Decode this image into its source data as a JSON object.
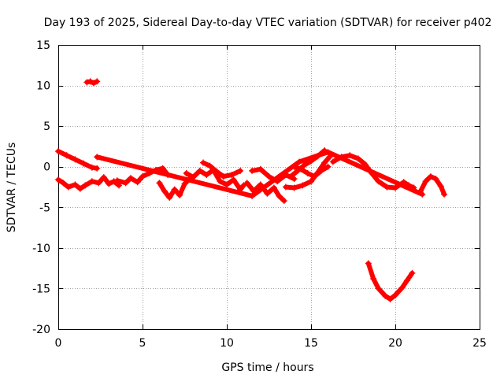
{
  "chart_data": {
    "type": "scatter",
    "title": "Day 193 of 2025, Sidereal Day-to-day VTEC variation (SDTVAR) for receiver p402",
    "xlabel": "GPS time / hours",
    "ylabel": "SDTVAR / TECUs",
    "xlim": [
      0,
      25
    ],
    "ylim": [
      -20,
      15
    ],
    "xticks": [
      0,
      5,
      10,
      15,
      20,
      25
    ],
    "yticks": [
      -20,
      -15,
      -10,
      -5,
      0,
      5,
      10,
      15
    ],
    "grid": true,
    "marker": "+",
    "series_color": "#ff0000",
    "tracks": [
      {
        "name": "track-upper-left",
        "points": [
          [
            0.0,
            1.9
          ],
          [
            0.5,
            1.4
          ],
          [
            1.0,
            0.9
          ],
          [
            1.5,
            0.4
          ],
          [
            2.0,
            -0.1
          ],
          [
            2.3,
            -0.2
          ]
        ]
      },
      {
        "name": "track-outlier-high",
        "points": [
          [
            1.7,
            10.4
          ],
          [
            1.9,
            10.5
          ],
          [
            2.1,
            10.3
          ],
          [
            2.3,
            10.5
          ]
        ]
      },
      {
        "name": "track-lower-left",
        "points": [
          [
            0.0,
            -1.6
          ],
          [
            0.3,
            -2.0
          ],
          [
            0.6,
            -2.5
          ],
          [
            1.0,
            -2.2
          ],
          [
            1.3,
            -2.7
          ],
          [
            1.6,
            -2.3
          ],
          [
            2.0,
            -1.8
          ],
          [
            2.4,
            -2.0
          ],
          [
            2.7,
            -1.3
          ],
          [
            3.0,
            -2.1
          ],
          [
            3.3,
            -1.8
          ],
          [
            3.6,
            -2.3
          ]
        ]
      },
      {
        "name": "track-early-mid",
        "points": [
          [
            3.5,
            -1.7
          ],
          [
            4.0,
            -2.0
          ],
          [
            4.3,
            -1.4
          ],
          [
            4.7,
            -1.9
          ],
          [
            5.0,
            -1.2
          ],
          [
            5.4,
            -0.8
          ],
          [
            5.8,
            -0.4
          ],
          [
            6.2,
            -0.2
          ],
          [
            6.5,
            -1.0
          ]
        ]
      },
      {
        "name": "track-dip-6-7",
        "points": [
          [
            6.0,
            -2.0
          ],
          [
            6.3,
            -3.0
          ],
          [
            6.6,
            -3.8
          ],
          [
            6.9,
            -2.8
          ],
          [
            7.2,
            -3.5
          ],
          [
            7.5,
            -2.1
          ],
          [
            7.8,
            -1.5
          ]
        ]
      },
      {
        "name": "track-8-11",
        "points": [
          [
            7.6,
            -0.8
          ],
          [
            8.0,
            -1.3
          ],
          [
            8.4,
            -0.5
          ],
          [
            8.8,
            -1.0
          ],
          [
            9.2,
            -0.4
          ],
          [
            9.6,
            -1.8
          ],
          [
            10.0,
            -2.2
          ],
          [
            10.4,
            -1.6
          ],
          [
            10.8,
            -2.8
          ],
          [
            11.0,
            -2.3
          ]
        ]
      },
      {
        "name": "track-8-11-upper",
        "points": [
          [
            8.6,
            0.5
          ],
          [
            9.0,
            0.1
          ],
          [
            9.4,
            -0.6
          ],
          [
            9.8,
            -1.2
          ],
          [
            10.3,
            -1.0
          ],
          [
            10.8,
            -0.5
          ]
        ]
      },
      {
        "name": "track-11-14",
        "points": [
          [
            11.2,
            -2.0
          ],
          [
            11.6,
            -3.0
          ],
          [
            12.0,
            -2.2
          ],
          [
            12.4,
            -3.3
          ],
          [
            12.8,
            -2.6
          ],
          [
            13.1,
            -3.6
          ],
          [
            13.4,
            -4.2
          ]
        ]
      },
      {
        "name": "track-11-14-upper",
        "points": [
          [
            11.5,
            -0.5
          ],
          [
            12.0,
            -0.3
          ],
          [
            12.5,
            -1.2
          ],
          [
            13.0,
            -1.8
          ],
          [
            13.5,
            -1.0
          ],
          [
            14.0,
            -1.5
          ]
        ]
      },
      {
        "name": "track-rise-14-16",
        "points": [
          [
            13.5,
            -2.5
          ],
          [
            14.0,
            -2.6
          ],
          [
            14.5,
            -2.3
          ],
          [
            15.0,
            -1.8
          ],
          [
            15.4,
            -0.7
          ],
          [
            15.8,
            0.5
          ],
          [
            16.1,
            1.2
          ]
        ]
      },
      {
        "name": "track-rise-14-16-b",
        "points": [
          [
            13.8,
            -1.2
          ],
          [
            14.2,
            -0.5
          ],
          [
            14.6,
            0.2
          ],
          [
            15.0,
            0.7
          ],
          [
            15.4,
            1.3
          ],
          [
            15.8,
            2.0
          ]
        ]
      },
      {
        "name": "track-rise-14-16-c",
        "points": [
          [
            14.0,
            0.0
          ],
          [
            14.4,
            -0.3
          ],
          [
            14.8,
            -0.8
          ],
          [
            15.2,
            -1.2
          ],
          [
            15.6,
            -0.5
          ],
          [
            16.0,
            0.0
          ]
        ]
      },
      {
        "name": "track-16-21",
        "points": [
          [
            16.3,
            0.6
          ],
          [
            16.8,
            1.2
          ],
          [
            17.3,
            1.4
          ],
          [
            17.8,
            1.0
          ],
          [
            18.2,
            0.3
          ],
          [
            18.6,
            -0.8
          ],
          [
            19.0,
            -1.8
          ],
          [
            19.5,
            -2.5
          ],
          [
            20.0,
            -2.6
          ],
          [
            20.5,
            -1.9
          ],
          [
            20.8,
            -2.3
          ],
          [
            21.1,
            -2.6
          ]
        ]
      },
      {
        "name": "track-21-23",
        "points": [
          [
            21.5,
            -3.0
          ],
          [
            21.8,
            -1.8
          ],
          [
            22.1,
            -1.2
          ],
          [
            22.4,
            -1.5
          ],
          [
            22.7,
            -2.4
          ],
          [
            22.9,
            -3.4
          ]
        ]
      },
      {
        "name": "track-u-curve",
        "points": [
          [
            18.4,
            -11.9
          ],
          [
            18.7,
            -13.8
          ],
          [
            19.0,
            -15.0
          ],
          [
            19.4,
            -15.9
          ],
          [
            19.7,
            -16.3
          ],
          [
            20.0,
            -15.8
          ],
          [
            20.4,
            -14.9
          ],
          [
            20.7,
            -14.0
          ],
          [
            21.0,
            -13.1
          ]
        ]
      },
      {
        "name": "track-isolated",
        "points": [
          [
            2.3,
            1.2
          ],
          [
            11.5,
            -3.6
          ],
          [
            14.3,
            0.6
          ],
          [
            16.0,
            1.8
          ],
          [
            21.6,
            -3.4
          ]
        ]
      }
    ]
  }
}
